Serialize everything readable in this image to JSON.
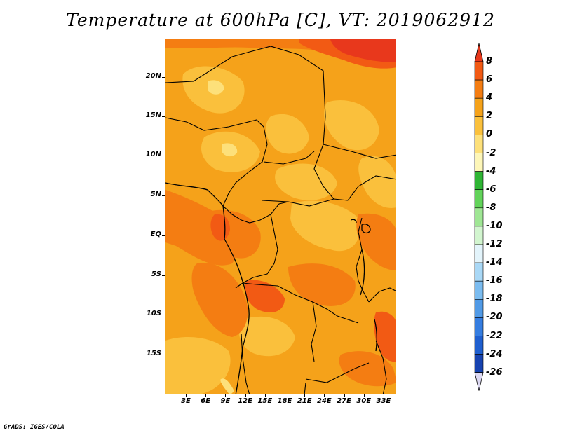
{
  "title": "Temperature at 600hPa [C], VT: 2019062912",
  "credit": "GrADS: IGES/COLA",
  "lat_ticks": [
    "20N",
    "15N",
    "10N",
    "5N",
    "EQ",
    "5S",
    "10S",
    "15S"
  ],
  "lon_ticks": [
    "3E",
    "6E",
    "9E",
    "12E",
    "15E",
    "18E",
    "21E",
    "24E",
    "27E",
    "30E",
    "33E"
  ],
  "colorbar": {
    "labels": [
      "8",
      "6",
      "4",
      "2",
      "0",
      "-2",
      "-4",
      "-6",
      "-8",
      "-10",
      "-12",
      "-14",
      "-16",
      "-18",
      "-20",
      "-22",
      "-24",
      "-26"
    ],
    "colors": [
      "#e8381c",
      "#f25a14",
      "#f47d12",
      "#f5a21a",
      "#fac03c",
      "#fde07a",
      "#fdf6b8",
      "#2fb534",
      "#62d35a",
      "#9fe694",
      "#d2f5cf",
      "#e3f4fb",
      "#a9d8f6",
      "#7bbcf0",
      "#519ae6",
      "#357de0",
      "#1f5fcf",
      "#1743b0",
      "#0e2488",
      "#dcd8f2"
    ]
  },
  "colors": {
    "base": "#f5a21a",
    "warm": "#f47d12",
    "hot": "#f25a14",
    "hottest": "#e8381c",
    "cool": "#fac03c",
    "coolest": "#fde07a"
  }
}
